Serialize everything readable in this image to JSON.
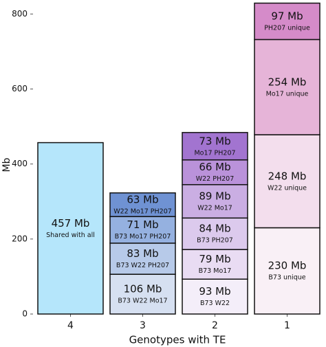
{
  "chart_data": {
    "type": "stacked_bar",
    "ylabel": "Mb",
    "xlabel": "Genotypes with TE",
    "ylim": [
      0,
      830
    ],
    "yticks": [
      0,
      200,
      400,
      600,
      800
    ],
    "bars": [
      {
        "category": "4",
        "segments": [
          {
            "value": 457,
            "value_label": "457 Mb",
            "name": "Shared with all",
            "color": "#b5e6fb"
          }
        ]
      },
      {
        "category": "3",
        "segments": [
          {
            "value": 106,
            "value_label": "106 Mb",
            "name": "B73 W22 Mo17",
            "color": "#d6e0f1"
          },
          {
            "value": 83,
            "value_label": "83 Mb",
            "name": "B73 W22 PH207",
            "color": "#b7cae9"
          },
          {
            "value": 71,
            "value_label": "71 Mb",
            "name": "B73 Mo17 PH207",
            "color": "#95b1e0"
          },
          {
            "value": 63,
            "value_label": "63 Mb",
            "name": "W22 Mo17 PH207",
            "color": "#6f92d3"
          }
        ]
      },
      {
        "category": "2",
        "segments": [
          {
            "value": 93,
            "value_label": "93 Mb",
            "name": "B73 W22",
            "color": "#f4eef9"
          },
          {
            "value": 79,
            "value_label": "79 Mb",
            "name": "B73 Mo17",
            "color": "#e9dcf3"
          },
          {
            "value": 84,
            "value_label": "84 Mb",
            "name": "B73 PH207",
            "color": "#dccaed"
          },
          {
            "value": 89,
            "value_label": "89 Mb",
            "name": "W22 Mo17",
            "color": "#caaee3"
          },
          {
            "value": 66,
            "value_label": "66 Mb",
            "name": "W22 PH207",
            "color": "#ba92da"
          },
          {
            "value": 73,
            "value_label": "73 Mb",
            "name": "Mo17 PH207",
            "color": "#a274d0"
          }
        ]
      },
      {
        "category": "1",
        "segments": [
          {
            "value": 230,
            "value_label": "230 Mb",
            "name": "B73 unique",
            "color": "#f9f0f6"
          },
          {
            "value": 248,
            "value_label": "248 Mb",
            "name": "W22 unique",
            "color": "#f3deed"
          },
          {
            "value": 254,
            "value_label": "254 Mb",
            "name": "Mo17 unique",
            "color": "#e6b4d8"
          },
          {
            "value": 97,
            "value_label": "97 Mb",
            "name": "PH207 unique",
            "color": "#d58bc9"
          }
        ]
      }
    ]
  }
}
